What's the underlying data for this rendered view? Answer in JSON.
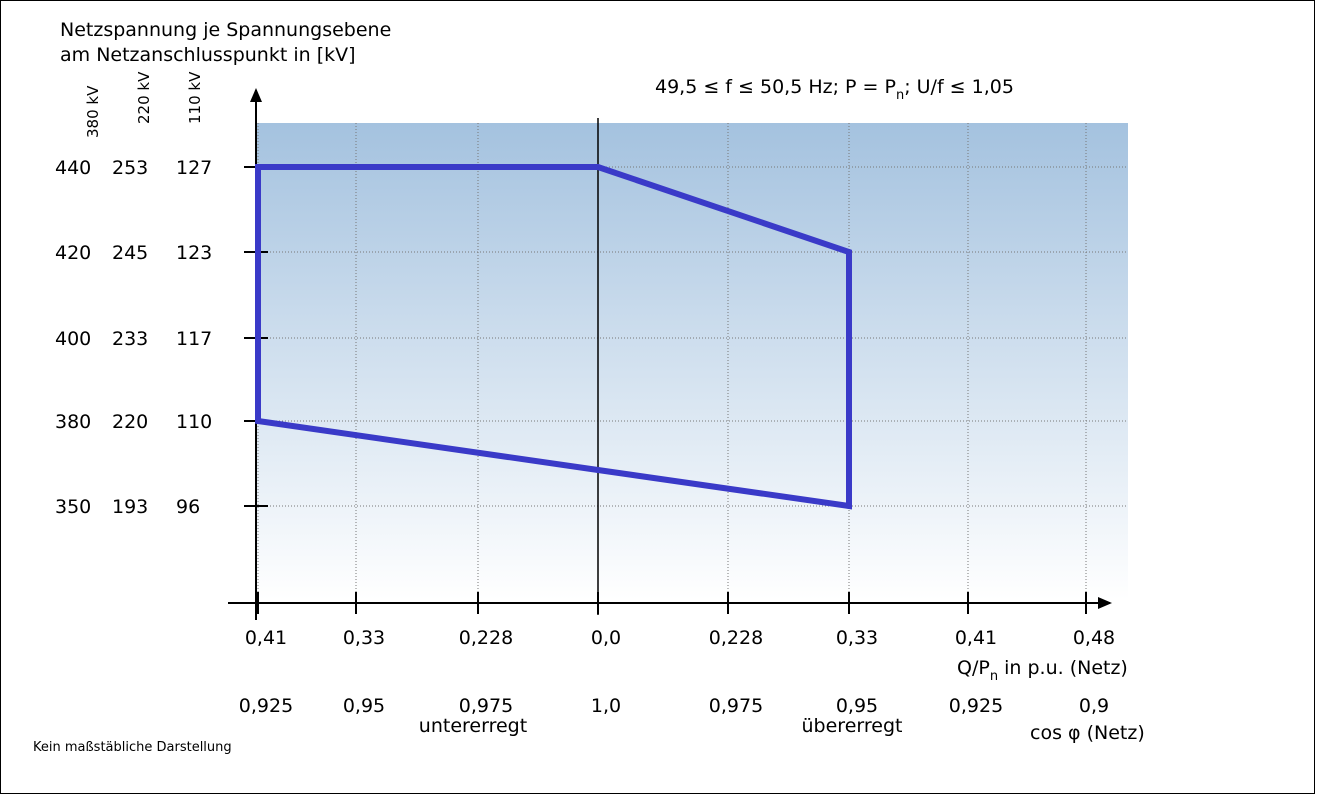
{
  "chart_data": {
    "type": "line",
    "title_lines": [
      "Netzspannung je Spannungsebene",
      "am Netzanschlusspunkt in [kV]"
    ],
    "level_headers": [
      "380 kV",
      "220 kV",
      "110 kV"
    ],
    "y_tick_rows": [
      {
        "values": [
          "440",
          "253",
          "127"
        ],
        "kv380": 440
      },
      {
        "values": [
          "420",
          "245",
          "123"
        ],
        "kv380": 420
      },
      {
        "values": [
          "400",
          "233",
          "117"
        ],
        "kv380": 400
      },
      {
        "values": [
          "380",
          "220",
          "110"
        ],
        "kv380": 380
      },
      {
        "values": [
          "350",
          "193",
          "96"
        ],
        "kv380": 350
      }
    ],
    "x_ticks": [
      {
        "q": "0,41",
        "cos": "0,925",
        "pos": -0.41
      },
      {
        "q": "0,33",
        "cos": "0,95",
        "pos": -0.33
      },
      {
        "q": "0,228",
        "cos": "0,975",
        "pos": -0.228
      },
      {
        "q": "0,0",
        "cos": "1,0",
        "pos": 0.0
      },
      {
        "q": "0,228",
        "cos": "0,975",
        "pos": 0.228
      },
      {
        "q": "0,33",
        "cos": "0,95",
        "pos": 0.33
      },
      {
        "q": "0,41",
        "cos": "0,925",
        "pos": 0.41
      },
      {
        "q": "0,48",
        "cos": "0,9",
        "pos": 0.48
      }
    ],
    "xlabel_q": "Q/Pn in p.u. (Netz)",
    "xlabel_q_parts": {
      "pre": "Q/P",
      "sub": "n",
      "post": " in p.u. (Netz)"
    },
    "xlabel_cos": "cos φ (Netz)",
    "region_labels": {
      "left": "untererregt",
      "right": "übererregt"
    },
    "condition_text": "49,5 ≤ f ≤ 50,5 Hz; P = Pn; U/f ≤ 1,05",
    "condition_parts": {
      "pre": "49,5 ≤ f ≤ 50,5 Hz; P = P",
      "sub": "n",
      "post": "; U/f ≤ 1,05"
    },
    "footnote": "Kein maßstäbliche Darstellung",
    "series": [
      {
        "points": [
          {
            "x": -0.41,
            "y": 440
          },
          {
            "x": 0.0,
            "y": 440
          },
          {
            "x": 0.33,
            "y": 420
          },
          {
            "x": 0.33,
            "y": 350
          },
          {
            "x": 0.0,
            "y": 365
          },
          {
            "x": -0.41,
            "y": 380
          }
        ],
        "closed": true,
        "color": "#3a3ac8"
      }
    ],
    "colors": {
      "gradient_top": "#a4c2df",
      "gradient_bottom": "#ffffff",
      "polygon": "#3a3ac8"
    }
  }
}
